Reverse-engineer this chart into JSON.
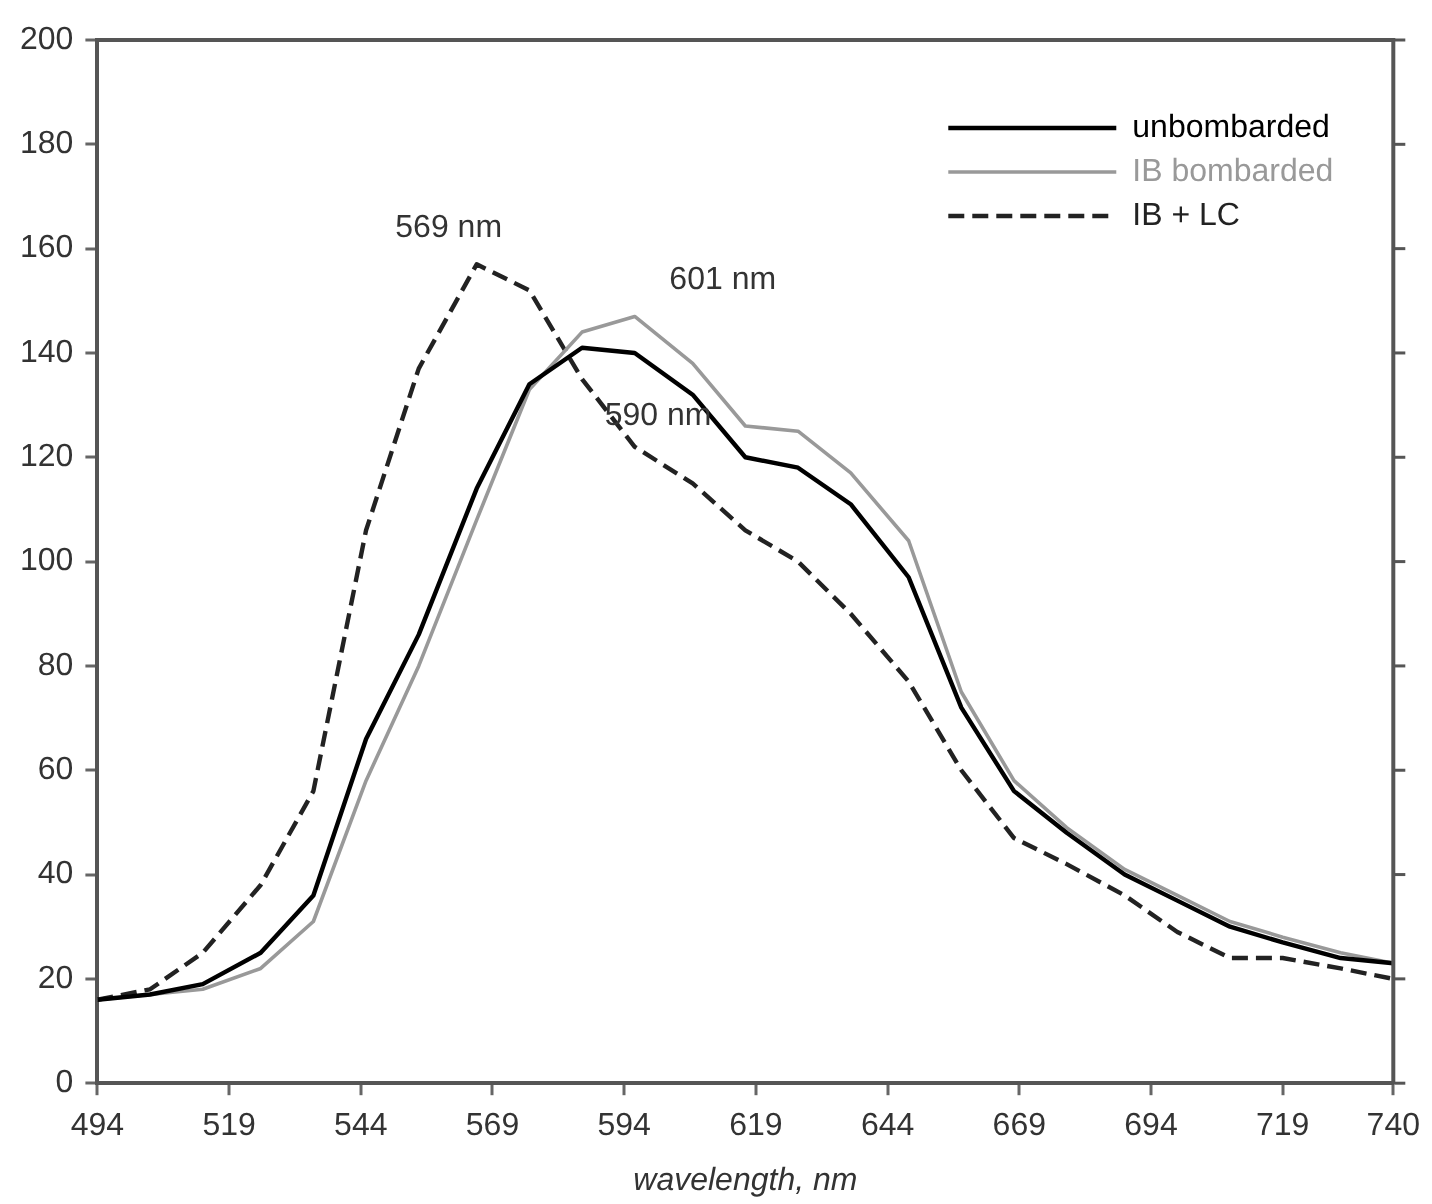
{
  "chart_data": {
    "type": "line",
    "xlabel": "wavelength, nm",
    "x": [
      494,
      504,
      514,
      525,
      535,
      545,
      555,
      566,
      576,
      586,
      596,
      607,
      617,
      627,
      637,
      648,
      658,
      668,
      678,
      689,
      699,
      709,
      719,
      730,
      740
    ],
    "series": [
      {
        "name": "unbombarded",
        "color": "#000000",
        "line_style": "solid",
        "values": [
          16,
          17,
          19,
          25,
          36,
          66,
          86,
          114,
          134,
          141,
          140,
          132,
          120,
          118,
          111,
          97,
          72,
          56,
          48,
          40,
          35,
          30,
          27,
          24,
          23
        ]
      },
      {
        "name": "IB bombarded",
        "color": "#999999",
        "line_style": "solid",
        "values": [
          16,
          17,
          18,
          22,
          31,
          58,
          80,
          108,
          133,
          144,
          147,
          138,
          126,
          125,
          117,
          104,
          75,
          58,
          49,
          41,
          36,
          31,
          28,
          25,
          23
        ]
      },
      {
        "name": "IB + LC",
        "color": "#222222",
        "line_style": "dashed",
        "values": [
          16,
          18,
          25,
          38,
          56,
          106,
          137,
          157,
          152,
          135,
          122,
          115,
          106,
          100,
          90,
          77,
          60,
          47,
          42,
          36,
          29,
          24,
          24,
          22,
          20
        ]
      }
    ],
    "xlim": [
      494,
      740
    ],
    "xticks": [
      494,
      519,
      544,
      569,
      594,
      619,
      644,
      669,
      694,
      719,
      740
    ],
    "ylim": [
      0,
      200
    ],
    "yticks": [
      0,
      20,
      40,
      60,
      80,
      100,
      120,
      140,
      160,
      180,
      200
    ],
    "annotations": [
      {
        "text": "569 nm",
        "x": 566,
        "y": 157
      },
      {
        "text": "601 nm",
        "x": 596,
        "y": 147
      },
      {
        "text": "590 nm",
        "x": 586,
        "y": 141
      }
    ],
    "legend": "top right",
    "grid": false,
    "marker": "none"
  }
}
